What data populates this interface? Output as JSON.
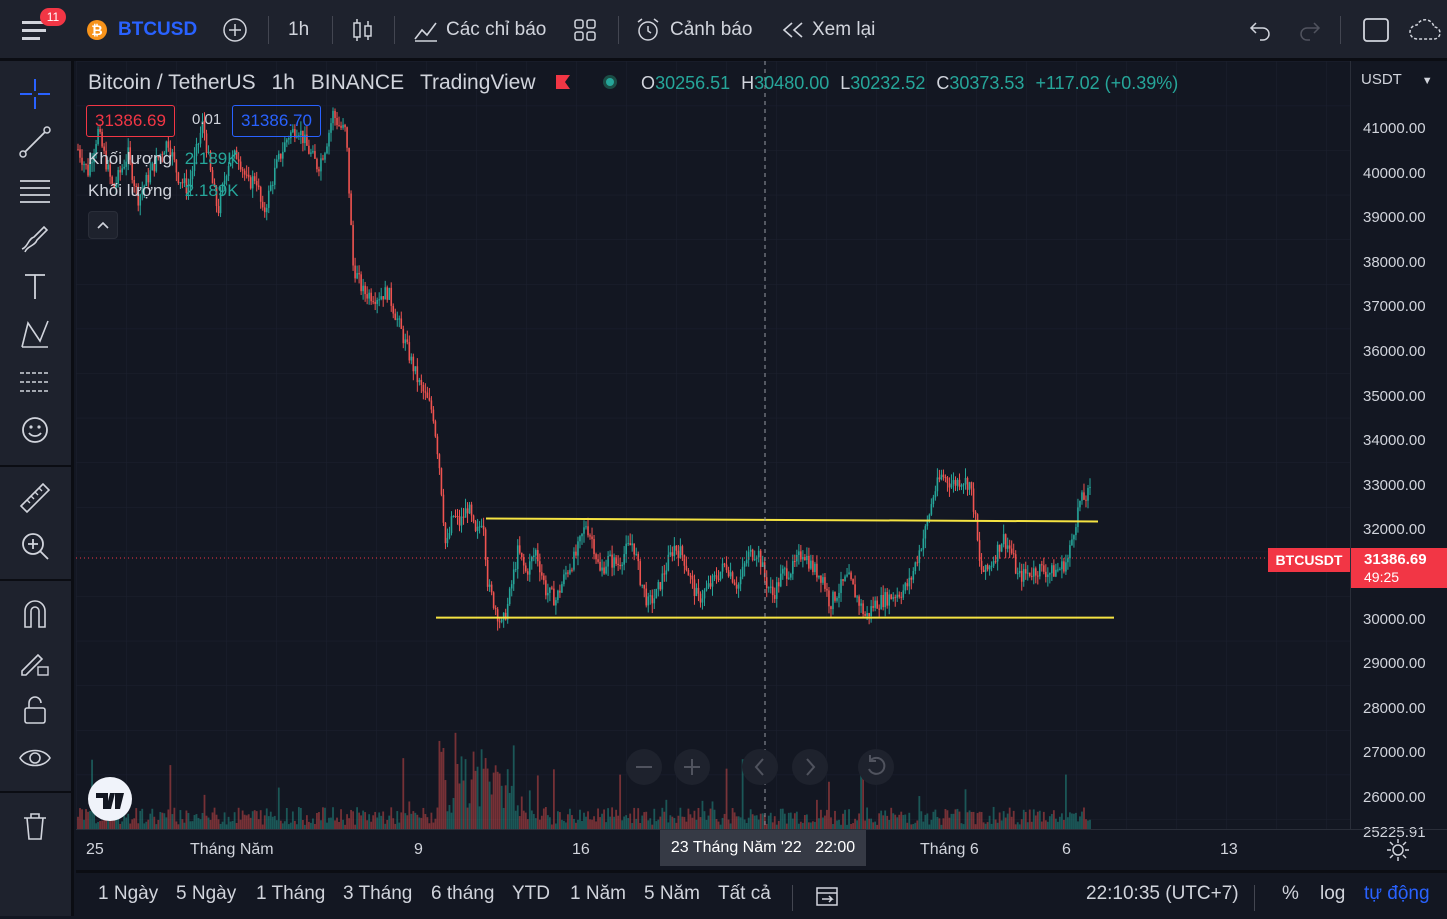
{
  "topbar": {
    "menu_badge": "11",
    "symbol": "BTCUSD",
    "interval": "1h",
    "indicators_label": "Các chỉ báo",
    "alert_label": "Cảnh báo",
    "replay_label": "Xem lại"
  },
  "legend": {
    "title": "Bitcoin / TetherUS",
    "interval": "1h",
    "exchange": "BINANCE",
    "source": "TradingView",
    "o_label": "O",
    "o_value": "30256.51",
    "h_label": "H",
    "h_value": "30480.00",
    "l_label": "L",
    "l_value": "30232.52",
    "c_label": "C",
    "c_value": "30373.53",
    "change": "+117.02 (+0.39%)",
    "sell_price": "31386.69",
    "spread": "0.01",
    "buy_price": "31386.70",
    "volume1_label": "Khối lượng",
    "volume1_value": "2.189K",
    "volume2_label": "Khối lượng",
    "volume2_value": "2.189K"
  },
  "price_axis": {
    "currency": "USDT",
    "ticks": [
      "41000.00",
      "40000.00",
      "39000.00",
      "38000.00",
      "37000.00",
      "36000.00",
      "35000.00",
      "34000.00",
      "33000.00",
      "32000.00",
      "31000.00",
      "30000.00",
      "29000.00",
      "28000.00",
      "27000.00",
      "26000.00",
      "25225.91"
    ],
    "last_label": "BTCUSDT",
    "last_price": "31386.69",
    "countdown": "49:25"
  },
  "time_axis": {
    "ticks": [
      "25",
      "Tháng Năm",
      "9",
      "16",
      "6",
      "13"
    ],
    "cursor_label": "23 Tháng Năm '22   22:00",
    "tick_june": "Tháng 6"
  },
  "bottombar": {
    "ranges": [
      "1 Ngày",
      "5 Ngày",
      "1 Tháng",
      "3 Tháng",
      "6 tháng",
      "YTD",
      "1 Năm",
      "5 Năm",
      "Tất cả"
    ],
    "clock": "22:10:35 (UTC+7)",
    "percent": "%",
    "log": "log",
    "auto": "tự động"
  },
  "colors": {
    "up": "#26a69a",
    "down": "#ef5350",
    "support_line": "#f5e342",
    "accent": "#2962ff",
    "last_price_bg": "#f23645"
  },
  "chart_data": {
    "type": "candlestick",
    "symbol": "BTCUSDT",
    "interval": "1h",
    "ylim": [
      25225.91,
      41500
    ],
    "trend_close": [
      [
        0,
        39200
      ],
      [
        10,
        38700
      ],
      [
        20,
        39600
      ],
      [
        35,
        38300
      ],
      [
        50,
        39100
      ],
      [
        60,
        38100
      ],
      [
        75,
        38800
      ],
      [
        90,
        39400
      ],
      [
        100,
        38600
      ],
      [
        110,
        38300
      ],
      [
        120,
        39300
      ],
      [
        125,
        39800
      ],
      [
        133,
        38600
      ],
      [
        140,
        37800
      ],
      [
        150,
        38900
      ],
      [
        160,
        39100
      ],
      [
        170,
        38400
      ],
      [
        178,
        38600
      ],
      [
        185,
        37700
      ],
      [
        198,
        38800
      ],
      [
        210,
        39500
      ],
      [
        220,
        39700
      ],
      [
        230,
        39200
      ],
      [
        240,
        38800
      ],
      [
        248,
        39300
      ],
      [
        255,
        40000
      ],
      [
        262,
        39700
      ],
      [
        268,
        39600
      ],
      [
        275,
        36600
      ],
      [
        285,
        36000
      ],
      [
        298,
        35900
      ],
      [
        310,
        36000
      ],
      [
        325,
        35000
      ],
      [
        340,
        34000
      ],
      [
        355,
        33300
      ],
      [
        362,
        32000
      ],
      [
        368,
        30200
      ],
      [
        375,
        31000
      ],
      [
        382,
        30800
      ],
      [
        390,
        31200
      ],
      [
        398,
        30500
      ],
      [
        405,
        31000
      ],
      [
        410,
        29400
      ],
      [
        418,
        28900
      ],
      [
        424,
        28500
      ],
      [
        430,
        29000
      ],
      [
        440,
        30200
      ],
      [
        448,
        29700
      ],
      [
        458,
        30200
      ],
      [
        468,
        29300
      ],
      [
        478,
        29100
      ],
      [
        488,
        29700
      ],
      [
        498,
        30100
      ],
      [
        508,
        30800
      ],
      [
        515,
        30400
      ],
      [
        522,
        29700
      ],
      [
        530,
        30000
      ],
      [
        540,
        29900
      ],
      [
        548,
        30200
      ],
      [
        555,
        30400
      ],
      [
        562,
        29600
      ],
      [
        570,
        29000
      ],
      [
        578,
        29200
      ],
      [
        586,
        29700
      ],
      [
        596,
        30300
      ],
      [
        605,
        30100
      ],
      [
        612,
        29600
      ],
      [
        620,
        29100
      ],
      [
        628,
        29300
      ],
      [
        638,
        29600
      ],
      [
        648,
        29900
      ],
      [
        660,
        29400
      ],
      [
        670,
        30100
      ],
      [
        680,
        30200
      ],
      [
        688,
        29500
      ],
      [
        695,
        29200
      ],
      [
        705,
        29700
      ],
      [
        715,
        29800
      ],
      [
        725,
        30200
      ],
      [
        735,
        29800
      ],
      [
        745,
        29600
      ],
      [
        752,
        29000
      ],
      [
        760,
        29300
      ],
      [
        770,
        29600
      ],
      [
        780,
        29100
      ],
      [
        788,
        28700
      ],
      [
        796,
        29000
      ],
      [
        805,
        29100
      ],
      [
        815,
        29200
      ],
      [
        825,
        29300
      ],
      [
        832,
        29500
      ],
      [
        840,
        30100
      ],
      [
        848,
        30700
      ],
      [
        856,
        31500
      ],
      [
        864,
        31900
      ],
      [
        874,
        31700
      ],
      [
        884,
        31800
      ],
      [
        892,
        31700
      ],
      [
        897,
        31000
      ],
      [
        902,
        29800
      ],
      [
        908,
        29700
      ],
      [
        915,
        30000
      ],
      [
        925,
        30500
      ],
      [
        933,
        30200
      ],
      [
        940,
        29600
      ],
      [
        950,
        29700
      ],
      [
        962,
        29800
      ],
      [
        972,
        29700
      ],
      [
        982,
        29800
      ],
      [
        990,
        30000
      ],
      [
        996,
        30700
      ],
      [
        1002,
        31300
      ],
      [
        1008,
        31400
      ],
      [
        1012,
        31500
      ]
    ],
    "support_lines": [
      {
        "price": 30900,
        "label": "upper"
      },
      {
        "price": 28700,
        "label": "lower"
      }
    ]
  }
}
